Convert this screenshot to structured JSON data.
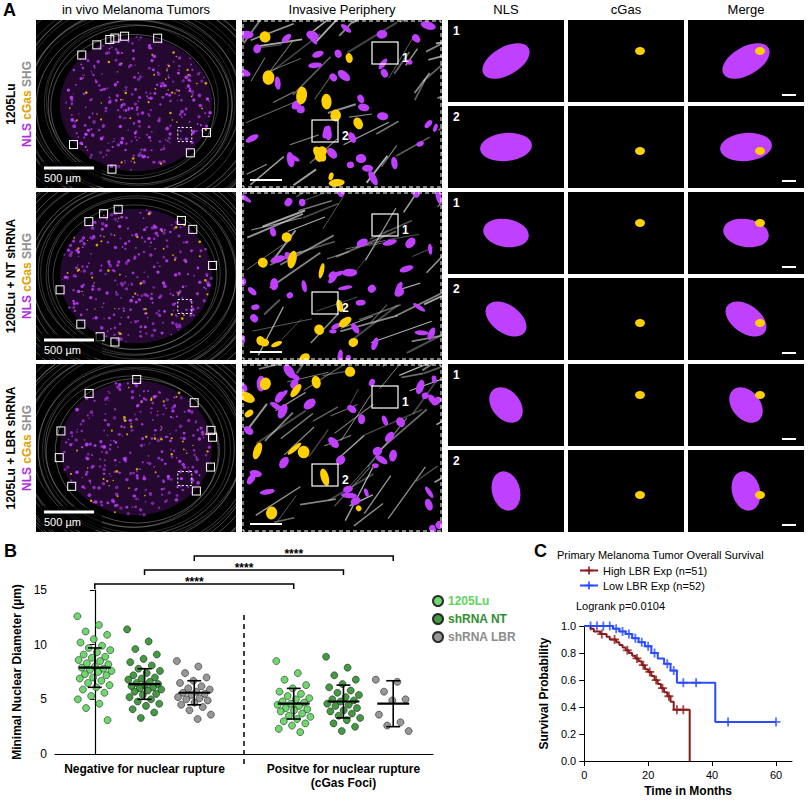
{
  "panel_labels": [
    "A",
    "B",
    "C"
  ],
  "panel_a": {
    "columns": [
      "in vivo Melanoma Tumors",
      "Invasive Periphery",
      "NLS",
      "cGas",
      "Merge"
    ],
    "rows": [
      "1205Lu",
      "1205Lu + NT shRNA",
      "1205Lu + LBR shRNA"
    ],
    "channels": [
      {
        "name": "NLS",
        "color": "#b030e0"
      },
      {
        "name": "cGas",
        "color": "#e0a000"
      },
      {
        "name": "SHG",
        "color": "#909090"
      }
    ],
    "scale_bar": "500 µm",
    "insets": [
      "1",
      "2"
    ]
  },
  "chart_data": [
    {
      "type": "scatter",
      "ylabel": "Minimal Nuclear Diameter (µm)",
      "ylim": [
        0,
        15
      ],
      "yticks": [
        0,
        5,
        10,
        15
      ],
      "groups": [
        "Negative for nuclear rupture",
        "Positve for nuclear rupture (cGas Foci)"
      ],
      "series": [
        {
          "name": "1205Lu",
          "color": "#5ed45e",
          "values": [
            [
              12.6,
              11.8,
              11.2,
              10.9,
              10.5,
              10.2,
              9.9,
              9.7,
              9.5,
              9.3,
              9.1,
              8.9,
              8.8,
              8.6,
              8.5,
              8.3,
              8.2,
              8.0,
              7.9,
              7.8,
              7.7,
              7.6,
              7.5,
              7.3,
              7.2,
              7.0,
              6.9,
              6.7,
              6.5,
              6.3,
              6.1,
              5.9,
              5.6,
              5.3,
              5.0,
              4.6,
              4.2,
              3.1
            ],
            [
              8.5,
              7.4,
              6.8,
              6.3,
              6.0,
              5.7,
              5.5,
              5.3,
              5.1,
              5.0,
              4.8,
              4.7,
              4.6,
              4.5,
              4.4,
              4.2,
              4.1,
              4.0,
              3.9,
              3.7,
              3.5,
              3.4,
              3.2,
              3.0,
              2.8,
              2.6,
              2.3,
              2.0
            ]
          ],
          "mean": [
            7.9,
            4.6
          ],
          "sd": [
            1.8,
            1.4
          ]
        },
        {
          "name": "shRNA NT",
          "color": "#2f8f2f",
          "values": [
            [
              11.4,
              10.3,
              9.6,
              9.1,
              8.7,
              8.4,
              8.1,
              7.8,
              7.6,
              7.4,
              7.2,
              7.0,
              6.9,
              6.8,
              6.6,
              6.5,
              6.4,
              6.3,
              6.2,
              6.1,
              6.0,
              5.9,
              5.8,
              5.7,
              5.5,
              5.4,
              5.2,
              5.0,
              4.8,
              4.6,
              4.4,
              4.1,
              3.8,
              3.3
            ],
            [
              8.9,
              7.9,
              7.2,
              6.8,
              6.4,
              6.1,
              5.8,
              5.6,
              5.4,
              5.2,
              5.0,
              4.9,
              4.8,
              4.6,
              4.5,
              4.4,
              4.2,
              4.0,
              3.9,
              3.7,
              3.5,
              3.3,
              3.1,
              2.8,
              2.5,
              2.1
            ]
          ],
          "mean": [
            6.4,
            4.8
          ],
          "sd": [
            1.4,
            1.5
          ]
        },
        {
          "name": "shRNA LBR",
          "color": "#8c8c8c",
          "values": [
            [
              8.5,
              8.0,
              7.4,
              7.0,
              6.7,
              6.5,
              6.2,
              6.0,
              5.9,
              5.7,
              5.6,
              5.5,
              5.4,
              5.2,
              5.1,
              5.0,
              4.9,
              4.7,
              4.5,
              4.3,
              4.0,
              3.6,
              3.2
            ],
            [
              6.8,
              6.6,
              5.7,
              5.0,
              4.9,
              3.6,
              2.9,
              2.6,
              2.1
            ]
          ],
          "mean": [
            5.6,
            4.6
          ],
          "sd": [
            1.1,
            2.1
          ]
        }
      ],
      "annotations": [
        {
          "label": "****",
          "series": "1205Lu"
        },
        {
          "label": "****",
          "series": "shRNA NT"
        },
        {
          "label": "****",
          "series": "shRNA LBR"
        }
      ],
      "marker": "circle",
      "legend": "top-right",
      "tick_labels": "y",
      "grid": false
    },
    {
      "type": "line",
      "title": "Primary Melanoma Tumor Overall Survival",
      "xlabel": "Time in Months",
      "ylabel": "Survival Probability",
      "xlim": [
        0,
        65
      ],
      "xticks": [
        0,
        20,
        40,
        60
      ],
      "ylim": [
        0,
        1
      ],
      "yticks": [
        {
          "value": 0,
          "label": "0.0"
        },
        0.2,
        0.4,
        0.6,
        0.8,
        {
          "value": 1,
          "label": "1.0"
        }
      ],
      "line_style": "step",
      "marker": "plus",
      "legend": "top",
      "grid": false,
      "annotations": [
        "Logrank p=0.0104"
      ],
      "series": [
        {
          "name": "High LBR Exp (n=51)",
          "color": "#8b1a1a",
          "x": [
            0,
            2,
            3,
            5,
            7,
            8,
            10,
            11,
            12,
            13,
            14,
            15,
            16,
            17,
            18,
            19,
            20,
            21,
            22,
            23,
            24,
            25,
            26,
            27,
            28,
            33
          ],
          "values": [
            1.0,
            0.98,
            0.96,
            0.94,
            0.92,
            0.9,
            0.88,
            0.86,
            0.84,
            0.82,
            0.8,
            0.78,
            0.76,
            0.74,
            0.71,
            0.68,
            0.66,
            0.63,
            0.6,
            0.57,
            0.54,
            0.51,
            0.48,
            0.44,
            0.38,
            0
          ],
          "censored_x": [
            5.5,
            9.5,
            13.5,
            16.5,
            18.5,
            20.5,
            22.5,
            24.5,
            26.5,
            29,
            31
          ],
          "censored_values": [
            0.94,
            0.9,
            0.82,
            0.76,
            0.71,
            0.66,
            0.6,
            0.54,
            0.48,
            0.38,
            0.38
          ]
        },
        {
          "name": "Low LBR Exp (n=52)",
          "color": "#2a4bff",
          "x": [
            0,
            9,
            11,
            13,
            15,
            17,
            19,
            21,
            23,
            25,
            27,
            29,
            41,
            60
          ],
          "values": [
            1.0,
            0.98,
            0.96,
            0.94,
            0.91,
            0.88,
            0.85,
            0.8,
            0.76,
            0.72,
            0.67,
            0.58,
            0.29,
            0.29
          ],
          "censored_x": [
            2,
            4,
            6,
            8,
            10,
            12,
            14,
            16,
            18,
            20,
            22,
            26,
            28,
            31,
            35,
            45,
            60
          ],
          "censored_values": [
            1.0,
            1.0,
            1.0,
            1.0,
            0.98,
            0.96,
            0.94,
            0.91,
            0.88,
            0.85,
            0.8,
            0.72,
            0.67,
            0.58,
            0.58,
            0.29,
            0.29
          ]
        }
      ]
    }
  ]
}
